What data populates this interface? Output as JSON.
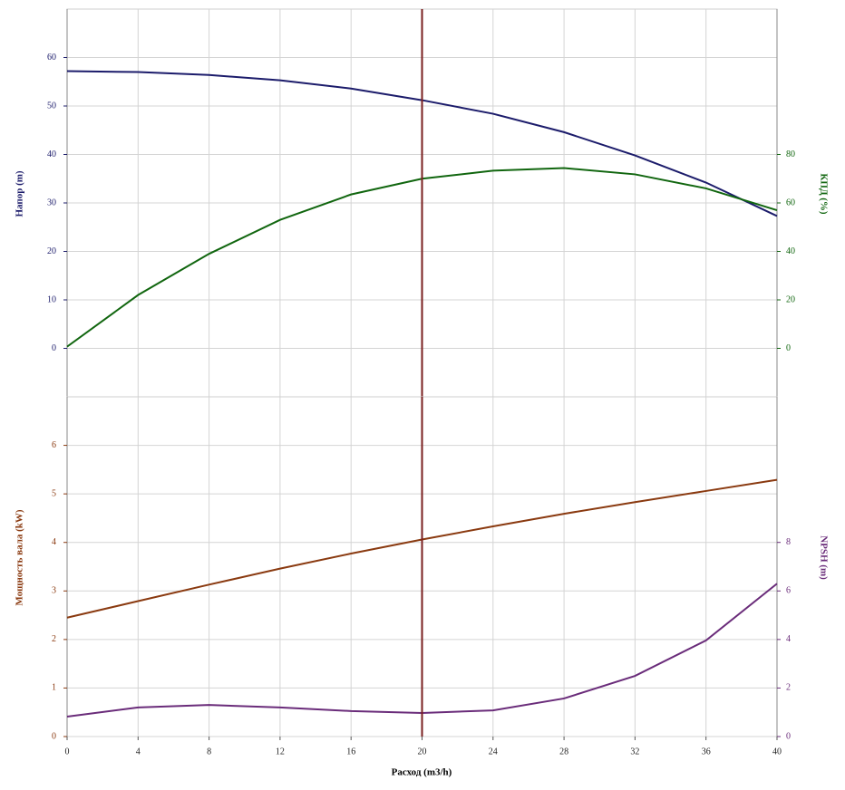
{
  "chart_data": [
    {
      "type": "line",
      "ylabel": "Напор (m)",
      "y2label": "КПД (%)",
      "xlim": [
        0,
        40
      ],
      "ylim": [
        -10,
        70
      ],
      "yticks": [
        0,
        10,
        20,
        30,
        40,
        50,
        60
      ],
      "y2lim": [
        -20,
        140
      ],
      "y2ticks": [
        0,
        20,
        40,
        60,
        80
      ],
      "grid": true,
      "marker_x": 20,
      "x": [
        0,
        4,
        8,
        12,
        16,
        20,
        24,
        28,
        32,
        36,
        40
      ],
      "series": [
        {
          "color": "#1c1c6b",
          "values": [
            57.2,
            57.0,
            56.4,
            55.3,
            53.6,
            51.2,
            48.4,
            44.6,
            39.8,
            34.2,
            27.3
          ]
        },
        {
          "color": "#11660f",
          "axis": "y2",
          "values": [
            0.7,
            22,
            39,
            53,
            63.5,
            70,
            73.3,
            74.4,
            71.8,
            66,
            57
          ]
        }
      ]
    },
    {
      "type": "line",
      "ylabel": "Мощность вала (kW)",
      "y2label": "NPSH (m)",
      "xlabel": "Расход (m3/h)",
      "xlim": [
        0,
        40
      ],
      "xticks": [
        0,
        4,
        8,
        12,
        16,
        20,
        24,
        28,
        32,
        36,
        40
      ],
      "ylim": [
        0,
        7
      ],
      "yticks": [
        0,
        1,
        2,
        3,
        4,
        5,
        6
      ],
      "y2lim": [
        0,
        14
      ],
      "y2ticks": [
        0,
        2,
        4,
        6,
        8
      ],
      "grid": true,
      "marker_x": 20,
      "x": [
        0,
        4,
        8,
        12,
        16,
        20,
        24,
        28,
        32,
        36,
        40
      ],
      "series": [
        {
          "color": "#8a3a10",
          "values": [
            2.45,
            2.79,
            3.13,
            3.46,
            3.77,
            4.06,
            4.33,
            4.59,
            4.83,
            5.06,
            5.29
          ]
        },
        {
          "color": "#6a2c7a",
          "axis": "y2",
          "values": [
            0.82,
            1.2,
            1.3,
            1.2,
            1.05,
            0.97,
            1.08,
            1.57,
            2.5,
            3.96,
            6.3
          ]
        }
      ]
    }
  ]
}
